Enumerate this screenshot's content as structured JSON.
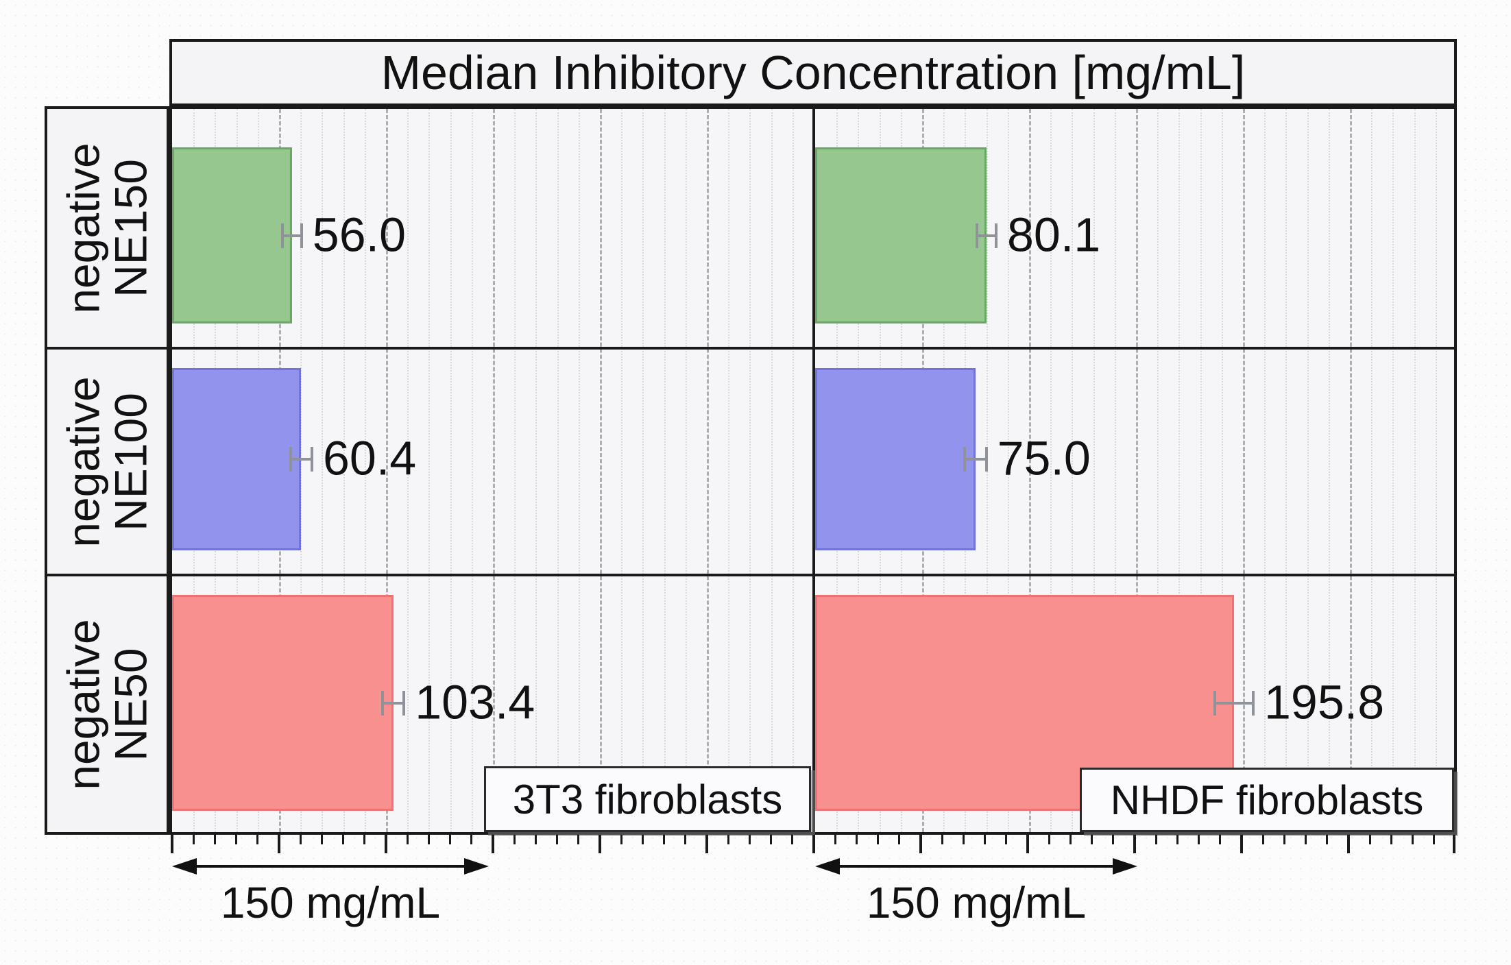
{
  "title": "Median Inhibitory Concentration [mg/mL]",
  "row_labels": [
    {
      "line1": "negative",
      "line2": "NE150"
    },
    {
      "line1": "negative",
      "line2": "NE100"
    },
    {
      "line1": "negative",
      "line2": "NE50"
    }
  ],
  "panels": [
    {
      "name": "3T3 fibroblasts",
      "scale_label": "150 mg/mL"
    },
    {
      "name": "NHDF fibroblasts",
      "scale_label": "150 mg/mL"
    }
  ],
  "chart_data": {
    "type": "bar",
    "orientation": "horizontal",
    "title": "Median Inhibitory Concentration [mg/mL]",
    "categories": [
      "negative NE150",
      "negative NE100",
      "negative NE50"
    ],
    "series": [
      {
        "name": "3T3 fibroblasts",
        "values": [
          56.0,
          60.4,
          103.4
        ],
        "value_labels": [
          "56.0",
          "60.4",
          "103.4"
        ],
        "errors": [
          4.5,
          5,
          5
        ]
      },
      {
        "name": "NHDF fibroblasts",
        "values": [
          80.1,
          75.0,
          195.8
        ],
        "value_labels": [
          "80.1",
          "75.0",
          "195.8"
        ],
        "errors": [
          4.5,
          5,
          9
        ]
      }
    ],
    "bar_colors": [
      "#95c78e",
      "#9293ec",
      "#f99090"
    ],
    "bar_border_colors": [
      "#69a862",
      "#7173d8",
      "#ee7272"
    ],
    "error_bar_color": "#8f9298",
    "xaxis": {
      "unit": "mg/mL",
      "range": [
        0,
        300
      ],
      "major_step": 50,
      "minor_step": 10,
      "scale_annotation": "150 mg/mL"
    },
    "grid": "vertical-dashed",
    "legend": "none"
  }
}
